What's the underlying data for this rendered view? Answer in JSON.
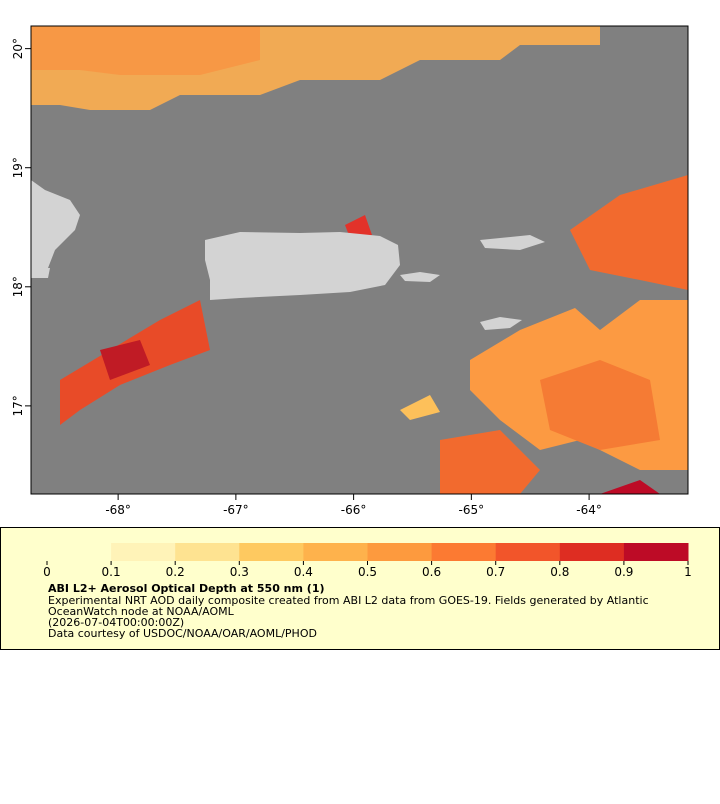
{
  "chart_data": {
    "type": "map",
    "xlim": [
      -68.74,
      -63.16
    ],
    "ylim": [
      16.26,
      20.19
    ],
    "xticks": [
      {
        "value": -68,
        "label": "-68°"
      },
      {
        "value": -67,
        "label": "-67°"
      },
      {
        "value": -66,
        "label": "-66°"
      },
      {
        "value": -65,
        "label": "-65°"
      },
      {
        "value": -64,
        "label": "-64°"
      }
    ],
    "yticks": [
      {
        "value": 17,
        "label": "17°"
      },
      {
        "value": 18,
        "label": "18°"
      },
      {
        "value": 19,
        "label": "19°"
      },
      {
        "value": 20,
        "label": "20°"
      }
    ],
    "colorbar": {
      "lim": [
        0,
        1
      ],
      "ticks": [
        0,
        0.1,
        0.2,
        0.3,
        0.4,
        0.5,
        0.6,
        0.7,
        0.8,
        0.9,
        1
      ],
      "colors": [
        "#ffffcc",
        "#fff3b8",
        "#fee391",
        "#fec960",
        "#feb24c",
        "#fd9a3e",
        "#fc7a32",
        "#f2552a",
        "#de2d22",
        "#bd0b26",
        "#800026"
      ]
    },
    "title": "ABI L2+ Aerosol Optical Depth at 550 nm (1)",
    "description": [
      "Experimental NRT AOD daily composite created from ABI L2 data from GOES-19. Fields generated by Atlantic",
      "OceanWatch node at NOAA/AOML",
      "(2026-07-04T00:00:00Z)",
      "Data courtesy of USDOC/NOAA/OAR/AOML/PHOD"
    ]
  }
}
